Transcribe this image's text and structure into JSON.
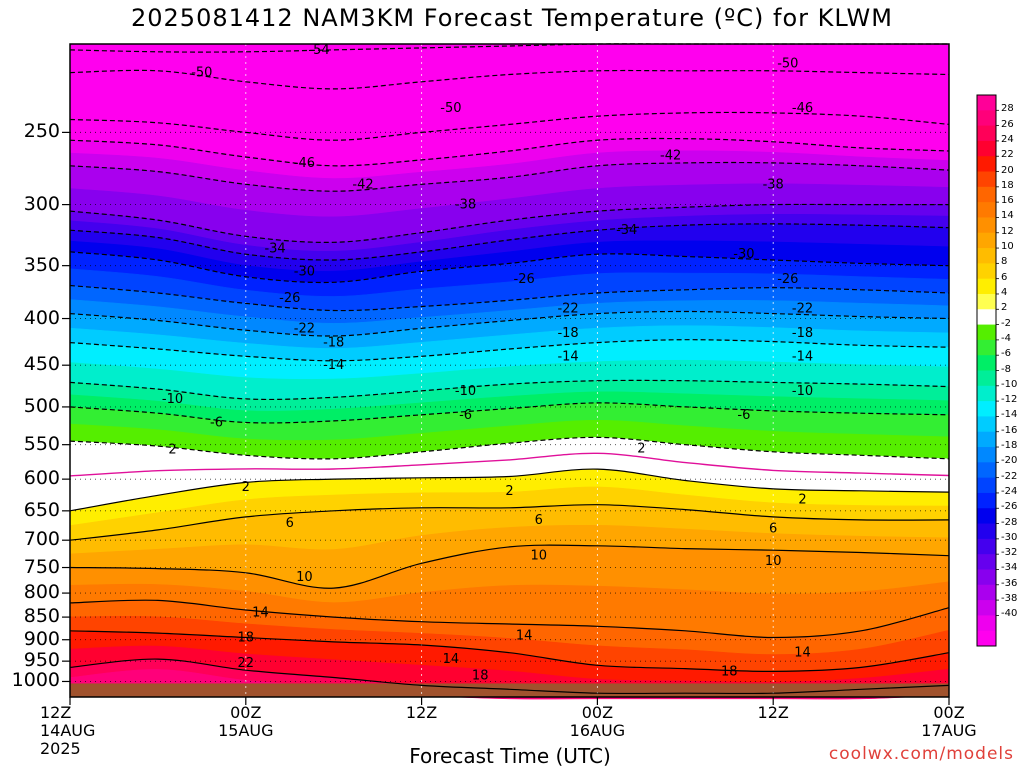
{
  "title": "2025081412 NAM3KM Forecast Temperature (ºC) for KLWM",
  "xlabel": "Forecast Time (UTC)",
  "credit": "coolwx.com/models",
  "chart_data": {
    "type": "heatmap",
    "title": "2025081412 NAM3KM Forecast Temperature (ºC) for KLWM",
    "xlabel": "Forecast Time (UTC)",
    "ylabel": "",
    "y_scale": "log",
    "ylim": [
      1040,
      200
    ],
    "xlim_hours": [
      0,
      60
    ],
    "x_ticks": [
      {
        "hour": 0,
        "lines": [
          "12Z",
          "14AUG",
          "2025"
        ]
      },
      {
        "hour": 12,
        "lines": [
          "00Z",
          "15AUG"
        ]
      },
      {
        "hour": 24,
        "lines": [
          "12Z"
        ]
      },
      {
        "hour": 36,
        "lines": [
          "00Z",
          "16AUG"
        ]
      },
      {
        "hour": 48,
        "lines": [
          "12Z"
        ]
      },
      {
        "hour": 60,
        "lines": [
          "00Z",
          "17AUG"
        ]
      }
    ],
    "y_ticks": [
      250,
      300,
      350,
      400,
      450,
      500,
      550,
      600,
      650,
      700,
      750,
      800,
      850,
      900,
      950,
      1000
    ],
    "hours": [
      0,
      6,
      12,
      18,
      24,
      30,
      36,
      42,
      48,
      54,
      60
    ],
    "contour_levels": [
      -54,
      -50,
      -46,
      -42,
      -38,
      -34,
      -30,
      -26,
      -22,
      -18,
      -14,
      -10,
      -6,
      -2,
      2,
      6,
      10,
      14,
      18,
      22
    ],
    "isotherms": [
      {
        "temp": -54,
        "pressure": [
          203,
          204,
          204,
          203,
          202,
          201,
          200,
          200,
          200,
          200,
          200
        ]
      },
      {
        "temp": -50,
        "pressure": [
          215,
          214,
          220,
          224,
          220,
          216,
          214,
          214,
          214,
          215,
          216
        ]
      },
      {
        "temp": -46,
        "pressure": [
          242,
          244,
          250,
          255,
          250,
          245,
          240,
          238,
          238,
          240,
          245
        ]
      },
      {
        "temp": -42,
        "pressure": [
          255,
          258,
          266,
          272,
          268,
          262,
          255,
          254,
          256,
          260,
          262
        ]
      },
      {
        "temp": -38,
        "pressure": [
          272,
          276,
          285,
          290,
          285,
          280,
          272,
          270,
          270,
          272,
          275
        ]
      },
      {
        "temp": -34,
        "pressure": [
          305,
          312,
          325,
          330,
          322,
          312,
          305,
          302,
          300,
          300,
          300
        ]
      },
      {
        "temp": -30,
        "pressure": [
          320,
          326,
          340,
          345,
          338,
          328,
          320,
          316,
          315,
          316,
          318
        ]
      },
      {
        "temp": -26,
        "pressure": [
          338,
          345,
          360,
          365,
          355,
          348,
          340,
          342,
          345,
          348,
          350
        ]
      },
      {
        "temp": -22,
        "pressure": [
          368,
          375,
          385,
          392,
          388,
          382,
          375,
          372,
          370,
          372,
          375
        ]
      },
      {
        "temp": -18,
        "pressure": [
          395,
          402,
          412,
          418,
          410,
          402,
          395,
          393,
          395,
          398,
          400
        ]
      },
      {
        "temp": -14,
        "pressure": [
          425,
          432,
          440,
          445,
          440,
          432,
          425,
          422,
          424,
          428,
          430
        ]
      },
      {
        "temp": -10,
        "pressure": [
          470,
          478,
          490,
          488,
          480,
          472,
          468,
          468,
          470,
          472,
          475
        ]
      },
      {
        "temp": -6,
        "pressure": [
          500,
          508,
          520,
          518,
          510,
          502,
          495,
          500,
          505,
          508,
          510
        ]
      },
      {
        "temp": -2,
        "pressure": [
          545,
          552,
          565,
          570,
          560,
          548,
          540,
          550,
          560,
          565,
          570
        ]
      },
      {
        "temp": 2,
        "pressure": [
          650,
          625,
          605,
          600,
          598,
          596,
          585,
          602,
          615,
          618,
          620
        ]
      },
      {
        "temp": 6,
        "pressure": [
          700,
          682,
          660,
          650,
          645,
          645,
          640,
          648,
          660,
          665,
          665
        ]
      },
      {
        "temp": 10,
        "pressure": [
          750,
          752,
          760,
          790,
          742,
          712,
          710,
          715,
          718,
          722,
          728
        ]
      },
      {
        "temp": 14,
        "pressure": [
          820,
          815,
          835,
          850,
          860,
          865,
          870,
          880,
          895,
          880,
          830
        ]
      },
      {
        "temp": 18,
        "pressure": [
          880,
          885,
          895,
          905,
          912,
          930,
          960,
          968,
          975,
          965,
          930
        ]
      },
      {
        "temp": 22,
        "pressure": [
          965,
          945,
          972,
          990,
          1010,
          1020,
          1030,
          1030,
          1030,
          1020,
          1010
        ]
      }
    ],
    "contour_labels": [
      {
        "text": "-54",
        "hour": 17,
        "pressure": 203
      },
      {
        "text": "-50",
        "hour": 9,
        "pressure": 215
      },
      {
        "text": "-50",
        "hour": 26,
        "pressure": 235
      },
      {
        "text": "-50",
        "hour": 49,
        "pressure": 210
      },
      {
        "text": "-46",
        "hour": 16,
        "pressure": 270
      },
      {
        "text": "-46",
        "hour": 50,
        "pressure": 235
      },
      {
        "text": "-42",
        "hour": 20,
        "pressure": 285
      },
      {
        "text": "-42",
        "hour": 41,
        "pressure": 265
      },
      {
        "text": "-38",
        "hour": 27,
        "pressure": 300
      },
      {
        "text": "-38",
        "hour": 48,
        "pressure": 285
      },
      {
        "text": "-34",
        "hour": 14,
        "pressure": 335
      },
      {
        "text": "-34",
        "hour": 38,
        "pressure": 320
      },
      {
        "text": "-30",
        "hour": 16,
        "pressure": 355
      },
      {
        "text": "-30",
        "hour": 46,
        "pressure": 340
      },
      {
        "text": "-26",
        "hour": 15,
        "pressure": 380
      },
      {
        "text": "-26",
        "hour": 31,
        "pressure": 362
      },
      {
        "text": "-26",
        "hour": 49,
        "pressure": 362
      },
      {
        "text": "-22",
        "hour": 16,
        "pressure": 410
      },
      {
        "text": "-22",
        "hour": 34,
        "pressure": 390
      },
      {
        "text": "-22",
        "hour": 50,
        "pressure": 390
      },
      {
        "text": "-18",
        "hour": 18,
        "pressure": 425
      },
      {
        "text": "-18",
        "hour": 34,
        "pressure": 415
      },
      {
        "text": "-18",
        "hour": 50,
        "pressure": 415
      },
      {
        "text": "-14",
        "hour": 18,
        "pressure": 450
      },
      {
        "text": "-14",
        "hour": 34,
        "pressure": 440
      },
      {
        "text": "-14",
        "hour": 50,
        "pressure": 440
      },
      {
        "text": "-10",
        "hour": 7,
        "pressure": 490
      },
      {
        "text": "-10",
        "hour": 27,
        "pressure": 480
      },
      {
        "text": "-10",
        "hour": 50,
        "pressure": 480
      },
      {
        "text": "-6",
        "hour": 10,
        "pressure": 520
      },
      {
        "text": "-6",
        "hour": 27,
        "pressure": 510
      },
      {
        "text": "-6",
        "hour": 46,
        "pressure": 510
      },
      {
        "text": "2",
        "hour": 7,
        "pressure": 557
      },
      {
        "text": "2",
        "hour": 39,
        "pressure": 555
      },
      {
        "text": "2",
        "hour": 12,
        "pressure": 612
      },
      {
        "text": "2",
        "hour": 30,
        "pressure": 618
      },
      {
        "text": "2",
        "hour": 50,
        "pressure": 632
      },
      {
        "text": "6",
        "hour": 15,
        "pressure": 670
      },
      {
        "text": "6",
        "hour": 32,
        "pressure": 665
      },
      {
        "text": "6",
        "hour": 48,
        "pressure": 680
      },
      {
        "text": "10",
        "hour": 16,
        "pressure": 768
      },
      {
        "text": "10",
        "hour": 32,
        "pressure": 728
      },
      {
        "text": "10",
        "hour": 48,
        "pressure": 738
      },
      {
        "text": "14",
        "hour": 13,
        "pressure": 840
      },
      {
        "text": "14",
        "hour": 31,
        "pressure": 890
      },
      {
        "text": "14",
        "hour": 26,
        "pressure": 945
      },
      {
        "text": "14",
        "hour": 50,
        "pressure": 930
      },
      {
        "text": "18",
        "hour": 12,
        "pressure": 895
      },
      {
        "text": "18",
        "hour": 28,
        "pressure": 985
      },
      {
        "text": "18",
        "hour": 45,
        "pressure": 975
      },
      {
        "text": "22",
        "hour": 12,
        "pressure": 955
      }
    ],
    "colorbar": {
      "labels": [
        "28",
        "26",
        "24",
        "22",
        "20",
        "18",
        "16",
        "14",
        "12",
        "10",
        "8",
        "6",
        "4",
        "2",
        "-2",
        "-4",
        "-6",
        "-8",
        "-10",
        "-12",
        "-14",
        "-16",
        "-18",
        "-20",
        "-22",
        "-24",
        "-26",
        "-28",
        "-30",
        "-32",
        "-34",
        "-36",
        "-38",
        "-40"
      ],
      "bands": [
        {
          "t": 28,
          "color": "#ff0098"
        },
        {
          "t": 26,
          "color": "#ff007a"
        },
        {
          "t": 24,
          "color": "#ff0058"
        },
        {
          "t": 22,
          "color": "#ff0030"
        },
        {
          "t": 20,
          "color": "#ff1a00"
        },
        {
          "t": 18,
          "color": "#ff4400"
        },
        {
          "t": 16,
          "color": "#ff6600"
        },
        {
          "t": 14,
          "color": "#ff7a00"
        },
        {
          "t": 12,
          "color": "#ff9000"
        },
        {
          "t": 10,
          "color": "#ffa600"
        },
        {
          "t": 8,
          "color": "#ffbc00"
        },
        {
          "t": 6,
          "color": "#ffd200"
        },
        {
          "t": 4,
          "color": "#ffee00"
        },
        {
          "t": 2,
          "color": "#ffff50"
        },
        {
          "t": 0,
          "color": "#ffffff"
        },
        {
          "t": -2,
          "color": "#55ee00"
        },
        {
          "t": -4,
          "color": "#33ee33"
        },
        {
          "t": -6,
          "color": "#00ee66"
        },
        {
          "t": -8,
          "color": "#00ee99"
        },
        {
          "t": -10,
          "color": "#00eecc"
        },
        {
          "t": -12,
          "color": "#00eeff"
        },
        {
          "t": -14,
          "color": "#00ccff"
        },
        {
          "t": -16,
          "color": "#00aaff"
        },
        {
          "t": -18,
          "color": "#0088ff"
        },
        {
          "t": -20,
          "color": "#0066ff"
        },
        {
          "t": -22,
          "color": "#0044ff"
        },
        {
          "t": -24,
          "color": "#0022ff"
        },
        {
          "t": -26,
          "color": "#0000ee"
        },
        {
          "t": -28,
          "color": "#2200ee"
        },
        {
          "t": -30,
          "color": "#4400ee"
        },
        {
          "t": -32,
          "color": "#6600ee"
        },
        {
          "t": -34,
          "color": "#8800ee"
        },
        {
          "t": -36,
          "color": "#aa00ee"
        },
        {
          "t": -38,
          "color": "#cc00ee"
        },
        {
          "t": -40,
          "color": "#ee00ee"
        },
        {
          "t": -42,
          "color": "#ff00ee"
        }
      ]
    },
    "ground_color": "#a0522d",
    "freezing_line_color": "#e0109a"
  }
}
